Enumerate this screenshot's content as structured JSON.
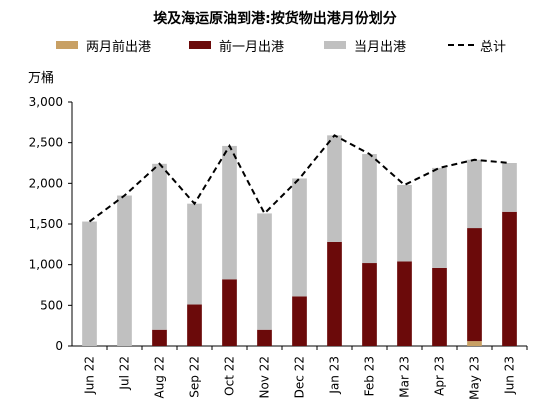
{
  "chart_data": {
    "type": "bar",
    "title": "埃及海运原油到港:按货物出港月份划分",
    "ylabel": "万桶",
    "ylim": [
      0,
      3000
    ],
    "yticks": [
      0,
      500,
      1000,
      1500,
      2000,
      2500,
      3000
    ],
    "ytick_labels": [
      "0",
      "500",
      "1,000",
      "1,500",
      "2,000",
      "2,500",
      "3,000"
    ],
    "stacked": true,
    "categories": [
      "Jun 22",
      "Jul 22",
      "Aug 22",
      "Sep 22",
      "Oct 22",
      "Nov 22",
      "Dec 22",
      "Jan 23",
      "Feb 23",
      "Mar 23",
      "Apr 23",
      "May 23",
      "Jun 23"
    ],
    "series": [
      {
        "name": "两月前出港",
        "kind": "bar",
        "color": "#c8a064",
        "values": [
          0,
          0,
          0,
          0,
          0,
          0,
          0,
          0,
          0,
          0,
          0,
          60,
          0
        ]
      },
      {
        "name": "前一月出港",
        "kind": "bar",
        "color": "#6b0a0a",
        "values": [
          0,
          0,
          200,
          510,
          820,
          200,
          610,
          1280,
          1020,
          1040,
          960,
          1390,
          1650
        ]
      },
      {
        "name": "当月出港",
        "kind": "bar",
        "color": "#c0c0c0",
        "values": [
          1530,
          1850,
          2040,
          1240,
          1640,
          1430,
          1450,
          1310,
          1340,
          940,
          1230,
          840,
          600
        ]
      },
      {
        "name": "总计",
        "kind": "line",
        "style": "dashed",
        "color": "#000000",
        "values": [
          1530,
          1850,
          2240,
          1750,
          2460,
          1630,
          2060,
          2590,
          2360,
          1980,
          2190,
          2290,
          2250
        ]
      }
    ],
    "grid": false,
    "legend_position": "top"
  }
}
